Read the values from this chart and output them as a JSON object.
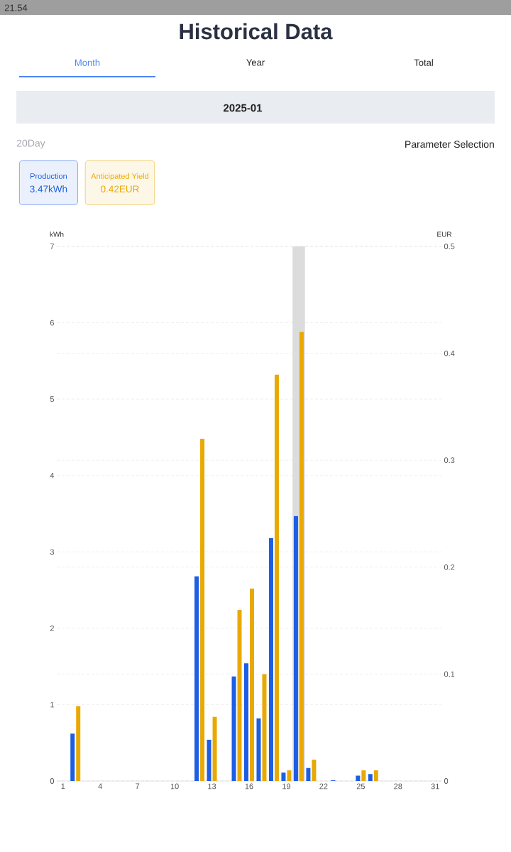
{
  "chart_data": {
    "type": "bar",
    "title": "Historical Data",
    "subtitle": "2025-01",
    "annotations": [
      "21.54",
      "Month",
      "Year",
      "Total",
      "20Day",
      "Parameter Selection",
      "3.47kWh",
      "0.42EUR"
    ],
    "ylabel": "kWh",
    "y2label": "EUR",
    "x": [
      2,
      12,
      13,
      15,
      16,
      17,
      18,
      19,
      20,
      21,
      23,
      25,
      26
    ],
    "xlim": [
      0.5,
      31.5
    ],
    "xticks": [
      1,
      4,
      7,
      10,
      13,
      16,
      19,
      22,
      25,
      28,
      31
    ],
    "ylim": [
      0,
      7
    ],
    "yticks": [
      0,
      1,
      2,
      3,
      4,
      5,
      6,
      7
    ],
    "y2lim": [
      0,
      0.5
    ],
    "y2ticks": [
      0,
      0.1,
      0.2,
      0.3,
      0.4,
      0.5
    ],
    "series": [
      {
        "name": "Production",
        "color": "#1d5ee3",
        "values": [
          0.62,
          2.68,
          0.54,
          1.37,
          1.54,
          0.82,
          3.18,
          0.11,
          3.47,
          0.17,
          0.01,
          0.07,
          0.09
        ]
      },
      {
        "name": "Anticipated Yield",
        "color": "#e9a903",
        "axis": "y2",
        "values": [
          0.07,
          0.32,
          0.06,
          0.16,
          0.18,
          0.1,
          0.38,
          0.01,
          0.42,
          0.02,
          null,
          0.01,
          0.01
        ]
      }
    ],
    "bands": [
      {
        "axis": "x",
        "from": 19.5,
        "to": 20.5,
        "color": "#dcdcdc"
      }
    ],
    "grid": "y",
    "legend": "top left"
  }
}
